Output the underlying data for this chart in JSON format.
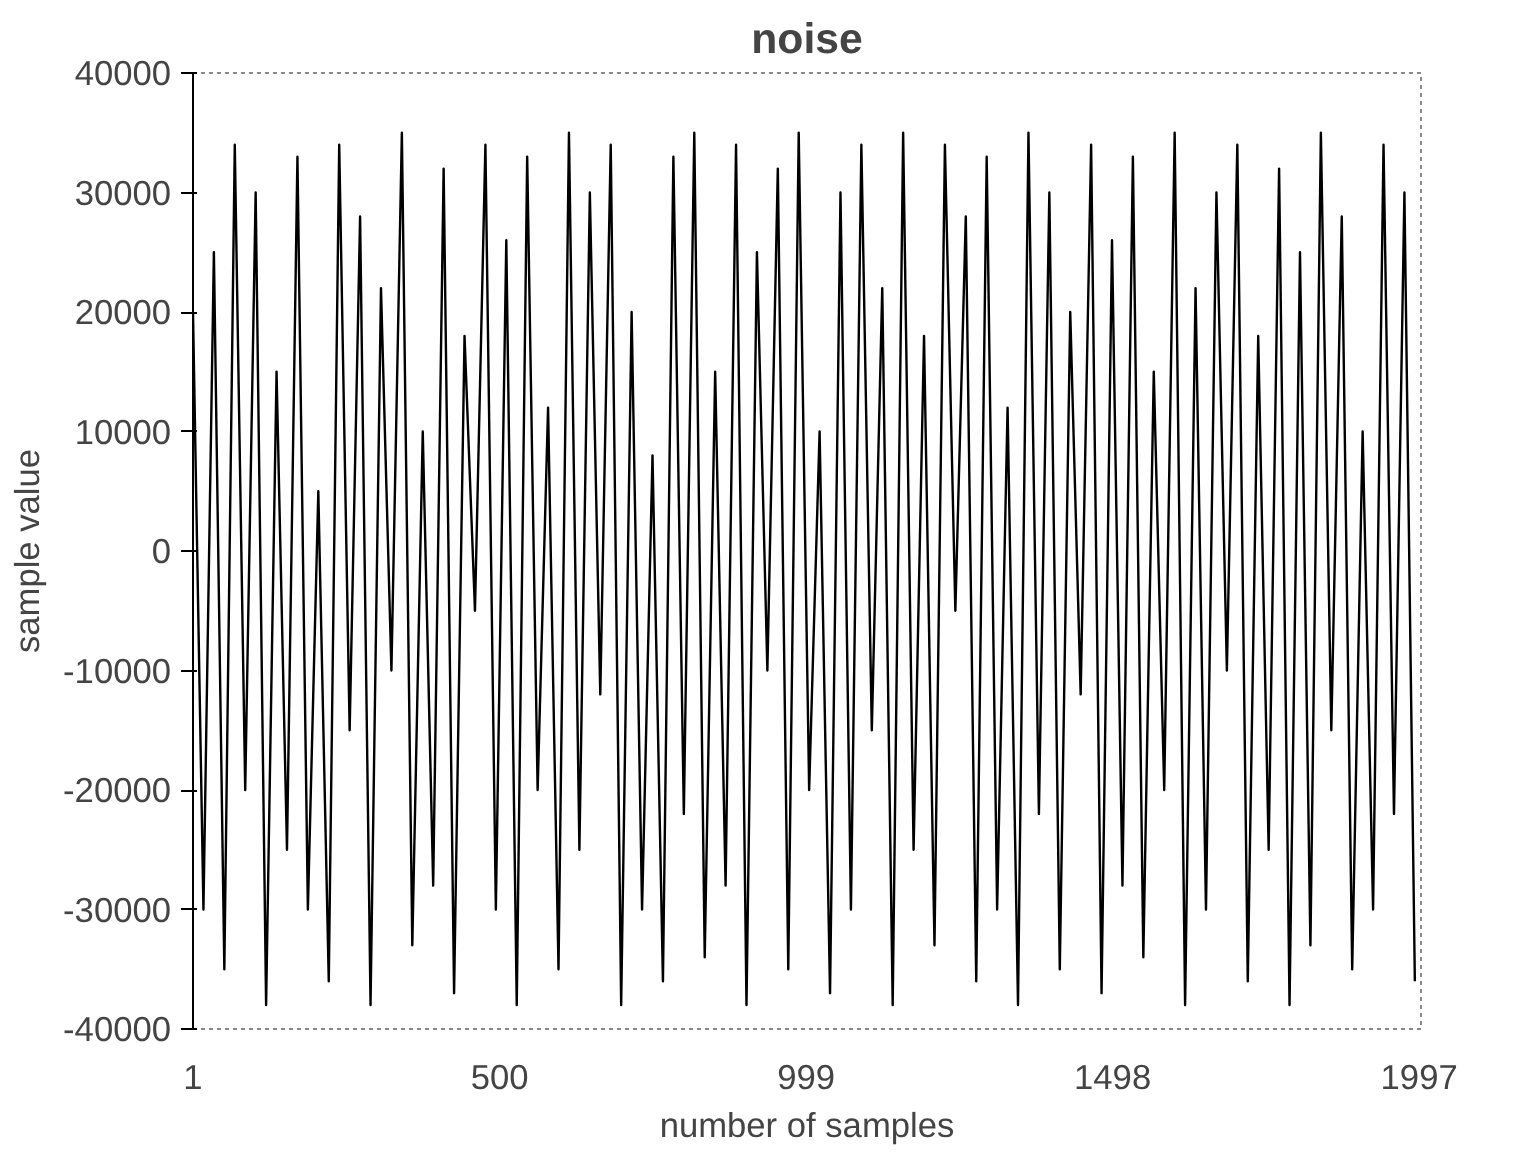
{
  "chart_data": {
    "type": "line",
    "title": "noise",
    "xlabel": "number of samples",
    "ylabel": "sample value",
    "x": [
      1,
      18,
      35,
      52,
      69,
      86,
      103,
      120,
      137,
      154,
      171,
      188,
      205,
      222,
      239,
      256,
      273,
      290,
      307,
      324,
      341,
      358,
      375,
      392,
      409,
      426,
      443,
      460,
      477,
      494,
      511,
      528,
      545,
      562,
      579,
      596,
      613,
      630,
      647,
      664,
      681,
      698,
      715,
      732,
      749,
      766,
      783,
      800,
      817,
      834,
      851,
      868,
      885,
      902,
      919,
      936,
      953,
      970,
      987,
      1004,
      1021,
      1038,
      1055,
      1072,
      1089,
      1106,
      1123,
      1140,
      1157,
      1174,
      1191,
      1208,
      1225,
      1242,
      1259,
      1276,
      1293,
      1310,
      1327,
      1344,
      1361,
      1378,
      1395,
      1412,
      1429,
      1446,
      1463,
      1480,
      1497,
      1514,
      1531,
      1548,
      1565,
      1582,
      1599,
      1616,
      1633,
      1650,
      1667,
      1684,
      1701,
      1718,
      1735,
      1752,
      1769,
      1786,
      1803,
      1820,
      1837,
      1854,
      1871,
      1888,
      1905,
      1922,
      1939,
      1956,
      1973,
      1990
    ],
    "series": [
      {
        "color": "#000000",
        "values": [
          20000,
          -30000,
          25000,
          -35000,
          34000,
          -20000,
          30000,
          -38000,
          15000,
          -25000,
          33000,
          -30000,
          5000,
          -36000,
          34000,
          -15000,
          28000,
          -38000,
          22000,
          -10000,
          35000,
          -33000,
          10000,
          -28000,
          32000,
          -37000,
          18000,
          -5000,
          34000,
          -30000,
          26000,
          -38000,
          33000,
          -20000,
          12000,
          -35000,
          35000,
          -25000,
          30000,
          -12000,
          34000,
          -38000,
          20000,
          -30000,
          8000,
          -36000,
          33000,
          -22000,
          35000,
          -34000,
          15000,
          -28000,
          34000,
          -38000,
          25000,
          -10000,
          32000,
          -35000,
          35000,
          -20000,
          10000,
          -37000,
          30000,
          -30000,
          34000,
          -15000,
          22000,
          -38000,
          35000,
          -25000,
          18000,
          -33000,
          34000,
          -5000,
          28000,
          -36000,
          33000,
          -30000,
          12000,
          -38000,
          35000,
          -22000,
          30000,
          -35000,
          20000,
          -12000,
          34000,
          -37000,
          26000,
          -28000,
          33000,
          -34000,
          15000,
          -20000,
          35000,
          -38000,
          22000,
          -30000,
          30000,
          -10000,
          34000,
          -36000,
          18000,
          -25000,
          32000,
          -38000,
          25000,
          -33000,
          35000,
          -15000,
          28000,
          -35000,
          10000,
          -30000,
          34000,
          -22000,
          30000,
          -36000
        ]
      }
    ],
    "xlim": [
      1,
      2000
    ],
    "xticks": [
      1,
      500,
      999,
      1498,
      1997
    ],
    "ylim": [
      -40000,
      40000
    ],
    "yticks": [
      -40000,
      -30000,
      -20000,
      -10000,
      0,
      10000,
      20000,
      30000,
      40000
    ],
    "grid": false
  }
}
